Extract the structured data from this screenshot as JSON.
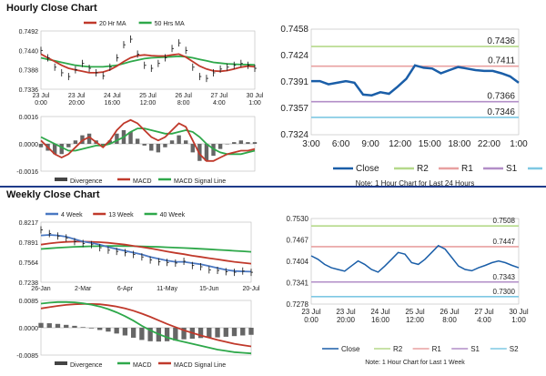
{
  "hourly": {
    "title": "Hourly Close Chart",
    "ma_chart": {
      "legend": [
        {
          "name": "20 Hr MA",
          "color": "#c0392b"
        },
        {
          "name": "50 Hrs MA",
          "color": "#2ea84a"
        }
      ],
      "y_ticks": [
        "0.7492",
        "0.7440",
        "0.7388",
        "0.7336"
      ],
      "x_ticks": [
        "23 Jul\n0:00",
        "23 Jul\n20:00",
        "24 Jul\n16:00",
        "25 Jul\n12:00",
        "26 Jul\n8:00",
        "27 Jul\n4:00",
        "30 Jul\n1:00"
      ],
      "close": [
        0.744,
        0.742,
        0.7395,
        0.738,
        0.737,
        0.7388,
        0.7405,
        0.7392,
        0.738,
        0.7372,
        0.7395,
        0.742,
        0.7455,
        0.747,
        0.743,
        0.74,
        0.7392,
        0.7405,
        0.742,
        0.7445,
        0.746,
        0.744,
        0.7395,
        0.737,
        0.7365,
        0.738,
        0.739,
        0.7395,
        0.74,
        0.7405,
        0.74,
        0.7392
      ],
      "ma20": [
        0.743,
        0.742,
        0.741,
        0.74,
        0.7392,
        0.7388,
        0.7384,
        0.738,
        0.738,
        0.7382,
        0.7388,
        0.7398,
        0.741,
        0.742,
        0.7426,
        0.7428,
        0.7426,
        0.7425,
        0.7425,
        0.7428,
        0.743,
        0.7422,
        0.741,
        0.7398,
        0.739,
        0.7385,
        0.7384,
        0.7386,
        0.739,
        0.7395,
        0.7398,
        0.7396
      ],
      "ma50": [
        0.742,
        0.7416,
        0.7412,
        0.7408,
        0.7404,
        0.74,
        0.7398,
        0.7396,
        0.7396,
        0.7396,
        0.7398,
        0.74,
        0.7405,
        0.741,
        0.7414,
        0.7418,
        0.742,
        0.7421,
        0.7422,
        0.7423,
        0.7424,
        0.7423,
        0.742,
        0.7416,
        0.7412,
        0.7408,
        0.7406,
        0.7404,
        0.7403,
        0.7402,
        0.7402,
        0.7401
      ],
      "y_min": 0.7336,
      "y_max": 0.7492
    },
    "macd_chart": {
      "y_ticks": [
        "0.0016",
        "0.0000",
        "-0.0016"
      ],
      "legend": [
        {
          "name": "Divergence",
          "color": "#444444"
        },
        {
          "name": "MACD",
          "color": "#c0392b"
        },
        {
          "name": "MACD Signal Line",
          "color": "#2ea84a"
        }
      ],
      "macd": [
        0.0002,
        -0.0002,
        -0.0006,
        -0.0008,
        -0.0006,
        -0.0002,
        0.0002,
        0.0004,
        0.0001,
        -0.0002,
        0.0002,
        0.0008,
        0.0012,
        0.0014,
        0.0012,
        0.0008,
        0.0004,
        0.0002,
        0.0004,
        0.0008,
        0.0012,
        0.001,
        0.0002,
        -0.0006,
        -0.001,
        -0.001,
        -0.0008,
        -0.0006,
        -0.0005,
        -0.0004,
        -0.0004,
        -0.0003
      ],
      "signal": [
        0.0004,
        0.0002,
        0.0,
        -0.0002,
        -0.0004,
        -0.0004,
        -0.0003,
        -0.0002,
        -0.0001,
        -0.0001,
        0.0,
        0.0002,
        0.0004,
        0.0007,
        0.0009,
        0.0009,
        0.0008,
        0.0007,
        0.0006,
        0.0006,
        0.0007,
        0.0008,
        0.0007,
        0.0004,
        0.0,
        -0.0003,
        -0.0005,
        -0.0006,
        -0.0006,
        -0.0006,
        -0.0005,
        -0.0004
      ],
      "divergence": [
        -0.0002,
        -0.0004,
        -0.0006,
        -0.0006,
        -0.0002,
        0.0002,
        0.0005,
        0.0006,
        0.0002,
        -0.0001,
        0.0002,
        0.0006,
        0.0008,
        0.0007,
        0.0003,
        -0.0001,
        -0.0004,
        -0.0005,
        -0.0002,
        0.0002,
        0.0005,
        0.0002,
        -0.0005,
        -0.001,
        -0.001,
        -0.0007,
        -0.0003,
        0.0,
        0.0001,
        0.0002,
        0.0001,
        0.0001
      ],
      "y_min": -0.0016,
      "y_max": 0.0016
    },
    "levels_chart": {
      "y_ticks": [
        "0.7458",
        "0.7424",
        "0.7391",
        "0.7357",
        "0.7324"
      ],
      "x_ticks": [
        "3:00",
        "6:00",
        "9:00",
        "12:00",
        "15:00",
        "18:00",
        "22:00",
        "1:00"
      ],
      "close": [
        0.7392,
        0.7392,
        0.7388,
        0.739,
        0.7392,
        0.739,
        0.7375,
        0.7374,
        0.7378,
        0.7376,
        0.7385,
        0.7395,
        0.7412,
        0.7409,
        0.7408,
        0.7402,
        0.7406,
        0.741,
        0.7408,
        0.7406,
        0.7405,
        0.7405,
        0.7402,
        0.7398,
        0.739
      ],
      "levels": [
        {
          "name": "R2",
          "value": 0.7436,
          "label": "0.7436",
          "color": "#b5d98a"
        },
        {
          "name": "R1",
          "value": 0.7411,
          "label": "0.7411",
          "color": "#e8a0a0"
        },
        {
          "name": "S1",
          "value": 0.7366,
          "label": "0.7366",
          "color": "#b28ec7"
        },
        {
          "name": "S2",
          "value": 0.7346,
          "label": "0.7346",
          "color": "#7ec8e3"
        }
      ],
      "legend_close": "Close",
      "close_color": "#1a5ea8",
      "note": "Note: 1 Hour Chart for Last 24 Hours",
      "y_min": 0.7324,
      "y_max": 0.7458
    }
  },
  "weekly": {
    "title": "Weekly Close Chart",
    "ma_chart": {
      "legend": [
        {
          "name": "4 Week",
          "color": "#4a78c2"
        },
        {
          "name": "13 Week",
          "color": "#c0392b"
        },
        {
          "name": "40 Week",
          "color": "#2ea84a"
        }
      ],
      "y_ticks": [
        "0.8217",
        "0.7891",
        "0.7564",
        "0.7238"
      ],
      "x_ticks": [
        "26-Jan",
        "2-Mar",
        "6-Apr",
        "11-May",
        "15-Jun",
        "20-Jul"
      ],
      "close": [
        0.809,
        0.803,
        0.799,
        0.796,
        0.79,
        0.787,
        0.785,
        0.78,
        0.776,
        0.774,
        0.772,
        0.769,
        0.765,
        0.76,
        0.757,
        0.756,
        0.755,
        0.758,
        0.751,
        0.749,
        0.744,
        0.743,
        0.741,
        0.74,
        0.742,
        0.74
      ],
      "ma4": [
        0.8,
        0.801,
        0.8,
        0.798,
        0.794,
        0.79,
        0.788,
        0.785,
        0.781,
        0.778,
        0.775,
        0.772,
        0.769,
        0.765,
        0.762,
        0.759,
        0.757,
        0.757,
        0.755,
        0.753,
        0.75,
        0.747,
        0.744,
        0.742,
        0.7415,
        0.741
      ],
      "ma13": [
        0.785,
        0.787,
        0.7885,
        0.7895,
        0.79,
        0.79,
        0.7895,
        0.789,
        0.788,
        0.7865,
        0.785,
        0.783,
        0.781,
        0.779,
        0.7765,
        0.774,
        0.7715,
        0.7695,
        0.767,
        0.765,
        0.763,
        0.761,
        0.759,
        0.757,
        0.7555,
        0.754
      ],
      "ma40": [
        0.778,
        0.779,
        0.78,
        0.7808,
        0.7815,
        0.782,
        0.7824,
        0.7826,
        0.7828,
        0.7828,
        0.7827,
        0.7825,
        0.7822,
        0.7818,
        0.7814,
        0.7808,
        0.7802,
        0.7796,
        0.779,
        0.7782,
        0.7775,
        0.7766,
        0.7758,
        0.775,
        0.7742,
        0.7734
      ],
      "y_min": 0.7238,
      "y_max": 0.8217
    },
    "macd_chart": {
      "y_ticks": [
        "0.0085",
        "0.0000",
        "-0.0085"
      ],
      "legend": [
        {
          "name": "Divergence",
          "color": "#444444"
        },
        {
          "name": "MACD",
          "color": "#2ea84a"
        },
        {
          "name": "MACD Signal Line",
          "color": "#c0392b"
        }
      ],
      "macd": [
        0.0075,
        0.0078,
        0.008,
        0.008,
        0.0079,
        0.0076,
        0.0072,
        0.0066,
        0.0058,
        0.0048,
        0.0036,
        0.0022,
        0.0006,
        -0.0008,
        -0.002,
        -0.003,
        -0.0038,
        -0.0044,
        -0.005,
        -0.0056,
        -0.0062,
        -0.0068,
        -0.0072,
        -0.0076,
        -0.0078,
        -0.008
      ],
      "signal": [
        0.006,
        0.0064,
        0.0068,
        0.0071,
        0.0073,
        0.0074,
        0.0074,
        0.0073,
        0.007,
        0.0066,
        0.006,
        0.0053,
        0.0044,
        0.0034,
        0.0023,
        0.0012,
        0.0002,
        -0.0008,
        -0.0016,
        -0.0024,
        -0.0031,
        -0.0038,
        -0.0044,
        -0.005,
        -0.0054,
        -0.0058
      ],
      "divergence": [
        0.0015,
        0.0014,
        0.0012,
        0.0009,
        0.0006,
        0.0002,
        -0.0002,
        -0.0007,
        -0.0012,
        -0.0018,
        -0.0024,
        -0.0031,
        -0.0038,
        -0.0042,
        -0.0043,
        -0.0042,
        -0.004,
        -0.0036,
        -0.0034,
        -0.0032,
        -0.0031,
        -0.003,
        -0.0028,
        -0.0026,
        -0.0024,
        -0.0022
      ],
      "y_min": -0.0085,
      "y_max": 0.0085
    },
    "levels_chart": {
      "y_ticks": [
        "0.7530",
        "0.7467",
        "0.7404",
        "0.7341",
        "0.7278"
      ],
      "x_ticks": [
        "23 Jul\n0:00",
        "23 Jul\n20:00",
        "24 Jul\n16:00",
        "25 Jul\n12:00",
        "26 Jul\n8:00",
        "27 Jul\n4:00",
        "30 Jul\n1:00"
      ],
      "close": [
        0.742,
        0.741,
        0.7395,
        0.7385,
        0.738,
        0.7375,
        0.739,
        0.7405,
        0.7395,
        0.738,
        0.7372,
        0.739,
        0.741,
        0.743,
        0.7425,
        0.74,
        0.7395,
        0.741,
        0.743,
        0.745,
        0.744,
        0.7415,
        0.739,
        0.738,
        0.7376,
        0.7385,
        0.7392,
        0.74,
        0.7405,
        0.74,
        0.7392,
        0.7385
      ],
      "levels": [
        {
          "name": "R2",
          "value": 0.7508,
          "label": "0.7508",
          "color": "#b5d98a"
        },
        {
          "name": "R1",
          "value": 0.7447,
          "label": "0.7447",
          "color": "#e8a0a0"
        },
        {
          "name": "S1",
          "value": 0.7343,
          "label": "0.7343",
          "color": "#b28ec7"
        },
        {
          "name": "S2",
          "value": 0.73,
          "label": "0.7300",
          "color": "#7ec8e3"
        }
      ],
      "legend_close": "Close",
      "close_color": "#1a5ea8",
      "note": "Note: 1 Hour Chart for Last 1 Week",
      "y_min": 0.7278,
      "y_max": 0.753
    }
  }
}
